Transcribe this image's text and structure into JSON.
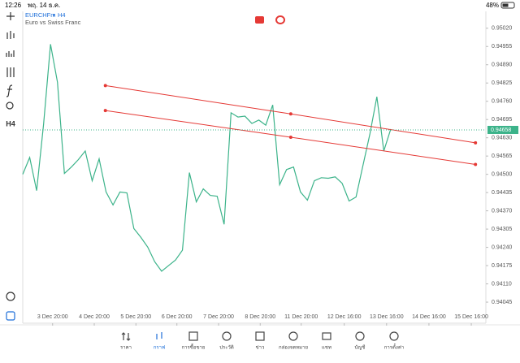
{
  "status_bar": {
    "time": "12:26",
    "date": "พฤ. 14 ธ.ค.",
    "battery": "48%"
  },
  "header": {
    "symbol": "EURCHFm",
    "separator": "•",
    "timeframe": "H4",
    "description": "Euro vs Swiss Franc"
  },
  "toolbar": {
    "timeframe": "H4"
  },
  "chart_data": {
    "type": "line",
    "series": [
      {
        "name": "EURCHFm",
        "color": "#3cb38a",
        "values": [
          0.945,
          0.9456,
          0.94442,
          0.94678,
          0.94963,
          0.94828,
          0.94503,
          0.94526,
          0.94552,
          0.94583,
          0.94477,
          0.94555,
          0.94437,
          0.94391,
          0.94437,
          0.94434,
          0.94307,
          0.94276,
          0.94241,
          0.94189,
          0.94155,
          0.94175,
          0.94195,
          0.9423,
          0.94506,
          0.94402,
          0.94448,
          0.94425,
          0.94422,
          0.94322,
          0.94719,
          0.94704,
          0.94707,
          0.94681,
          0.94693,
          0.94675,
          0.94747,
          0.94463,
          0.94517,
          0.94526,
          0.94437,
          0.94408,
          0.94477,
          0.94488,
          0.94486,
          0.94491,
          0.94468,
          0.94405,
          0.94419,
          0.94532,
          0.94644,
          0.94776,
          0.94583,
          0.94661
        ]
      }
    ],
    "xlim": [
      0,
      66.7
    ],
    "xticks": [
      {
        "value": 4.3,
        "label": "3 Dec 20:00"
      },
      {
        "value": 10.3,
        "label": "4 Dec 20:00"
      },
      {
        "value": 16.3,
        "label": "5 Dec 20:00"
      },
      {
        "value": 22.2,
        "label": "6 Dec 20:00"
      },
      {
        "value": 28.2,
        "label": "7 Dec 20:00"
      },
      {
        "value": 34.2,
        "label": "8 Dec 20:00"
      },
      {
        "value": 40.1,
        "label": "11 Dec 20:00"
      },
      {
        "value": 46.3,
        "label": "12 Dec 16:00"
      },
      {
        "value": 52.4,
        "label": "13 Dec 16:00"
      },
      {
        "value": 58.5,
        "label": "14 Dec 16:00"
      },
      {
        "value": 64.6,
        "label": "15 Dec 16:00"
      }
    ],
    "ylim": [
      0.9397,
      0.9508
    ],
    "yticks": [
      {
        "value": 0.9502,
        "label": "0.95020"
      },
      0.94955,
      {
        "value": 0.9489,
        "label": "0.94890"
      },
      0.94825,
      {
        "value": 0.9476,
        "label": "0.94760"
      },
      0.94695,
      {
        "value": 0.9463,
        "label": "0.94630"
      },
      0.94565,
      {
        "value": 0.945,
        "label": "0.94500"
      },
      0.94435,
      {
        "value": 0.9437,
        "label": "0.94370"
      },
      0.94305,
      {
        "value": 0.9424,
        "label": "0.94240"
      },
      0.94175,
      {
        "value": 0.9411,
        "label": "0.94110"
      },
      0.94045
    ],
    "current_price": 0.94658,
    "trend_lines": [
      {
        "color": "#e53935",
        "x": [
          11.9,
          38.6,
          65.2
        ],
        "y": [
          0.94816,
          0.94715,
          0.94612
        ]
      },
      {
        "color": "#e53935",
        "x": [
          11.9,
          38.6,
          65.2
        ],
        "y": [
          0.94727,
          0.94632,
          0.94535
        ]
      }
    ]
  },
  "tabs": [
    "ราคา",
    "กราฟ",
    "การซื้อขาย",
    "ประวัติ",
    "ข่าว",
    "กล่องจดหมาย",
    "แชท",
    "บัญชี",
    "การตั้งค่า"
  ],
  "active_tab": 1
}
